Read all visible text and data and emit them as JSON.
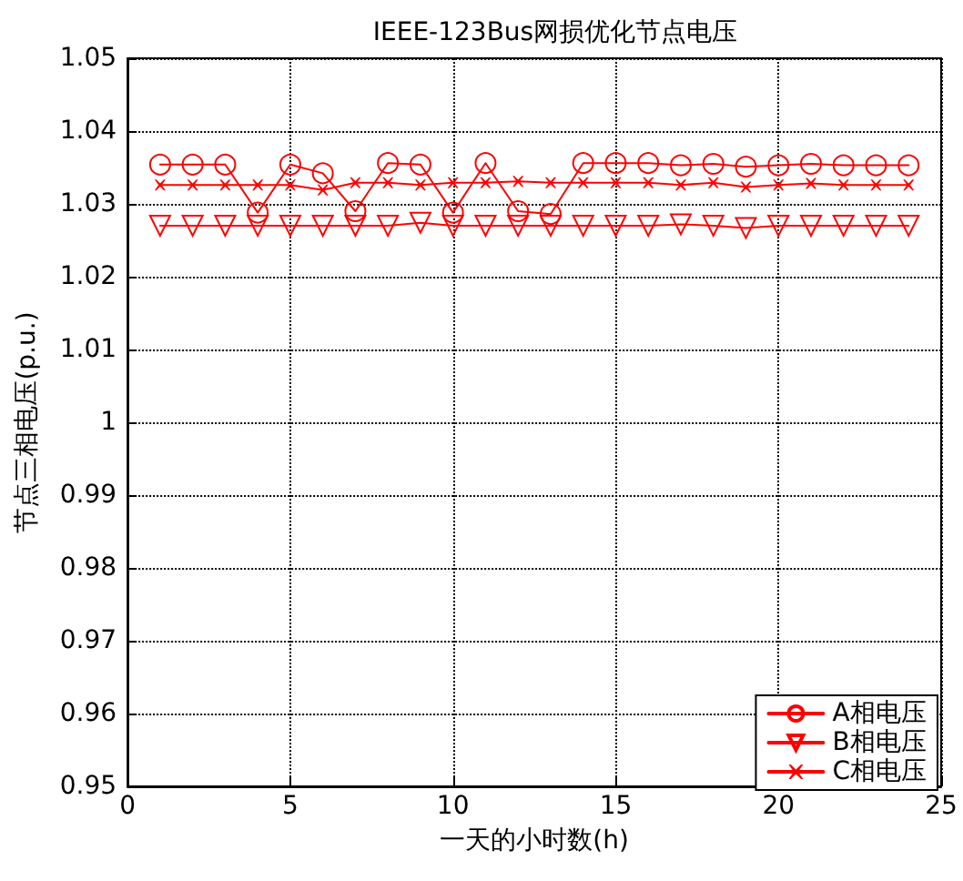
{
  "chart_data": {
    "type": "line",
    "title": "IEEE-123Bus网损优化节点电压",
    "xlabel": "一天的小时数(h)",
    "ylabel": "节点三相电压(p.u.)",
    "x": [
      1,
      2,
      3,
      4,
      5,
      6,
      7,
      8,
      9,
      10,
      11,
      12,
      13,
      14,
      15,
      16,
      17,
      18,
      19,
      20,
      21,
      22,
      23,
      24
    ],
    "series": [
      {
        "name": "A相电压",
        "color": "#ff0000",
        "marker": "circle",
        "values": [
          1.0354,
          1.0354,
          1.0354,
          1.0288,
          1.0354,
          1.0342,
          1.029,
          1.0356,
          1.0354,
          1.0288,
          1.0356,
          1.029,
          1.0286,
          1.0356,
          1.0356,
          1.0356,
          1.0353,
          1.0355,
          1.0351,
          1.0353,
          1.0355,
          1.0353,
          1.0353,
          1.0353
        ]
      },
      {
        "name": "B相电压",
        "color": "#ff0000",
        "marker": "triangle",
        "values": [
          1.027,
          1.027,
          1.027,
          1.027,
          1.027,
          1.027,
          1.027,
          1.027,
          1.0274,
          1.027,
          1.027,
          1.027,
          1.027,
          1.027,
          1.027,
          1.027,
          1.0272,
          1.027,
          1.0267,
          1.027,
          1.027,
          1.027,
          1.027,
          1.027
        ]
      },
      {
        "name": "C相电压",
        "color": "#ff0000",
        "marker": "cross",
        "values": [
          1.0326,
          1.0326,
          1.0326,
          1.0326,
          1.0326,
          1.0319,
          1.0329,
          1.0329,
          1.0326,
          1.0329,
          1.0329,
          1.0331,
          1.0329,
          1.0329,
          1.0329,
          1.0329,
          1.0326,
          1.0329,
          1.0323,
          1.0326,
          1.0328,
          1.0326,
          1.0326,
          1.0326
        ]
      }
    ],
    "xlim": [
      0,
      25
    ],
    "xticks": [
      0,
      5,
      10,
      15,
      20,
      25
    ],
    "ylim": [
      0.95,
      1.05
    ],
    "yticks": [
      0.95,
      0.96,
      0.97,
      0.98,
      0.99,
      1,
      1.01,
      1.02,
      1.03,
      1.04,
      1.05
    ],
    "grid": true,
    "legend": "bottom right",
    "line_style": "solid"
  }
}
